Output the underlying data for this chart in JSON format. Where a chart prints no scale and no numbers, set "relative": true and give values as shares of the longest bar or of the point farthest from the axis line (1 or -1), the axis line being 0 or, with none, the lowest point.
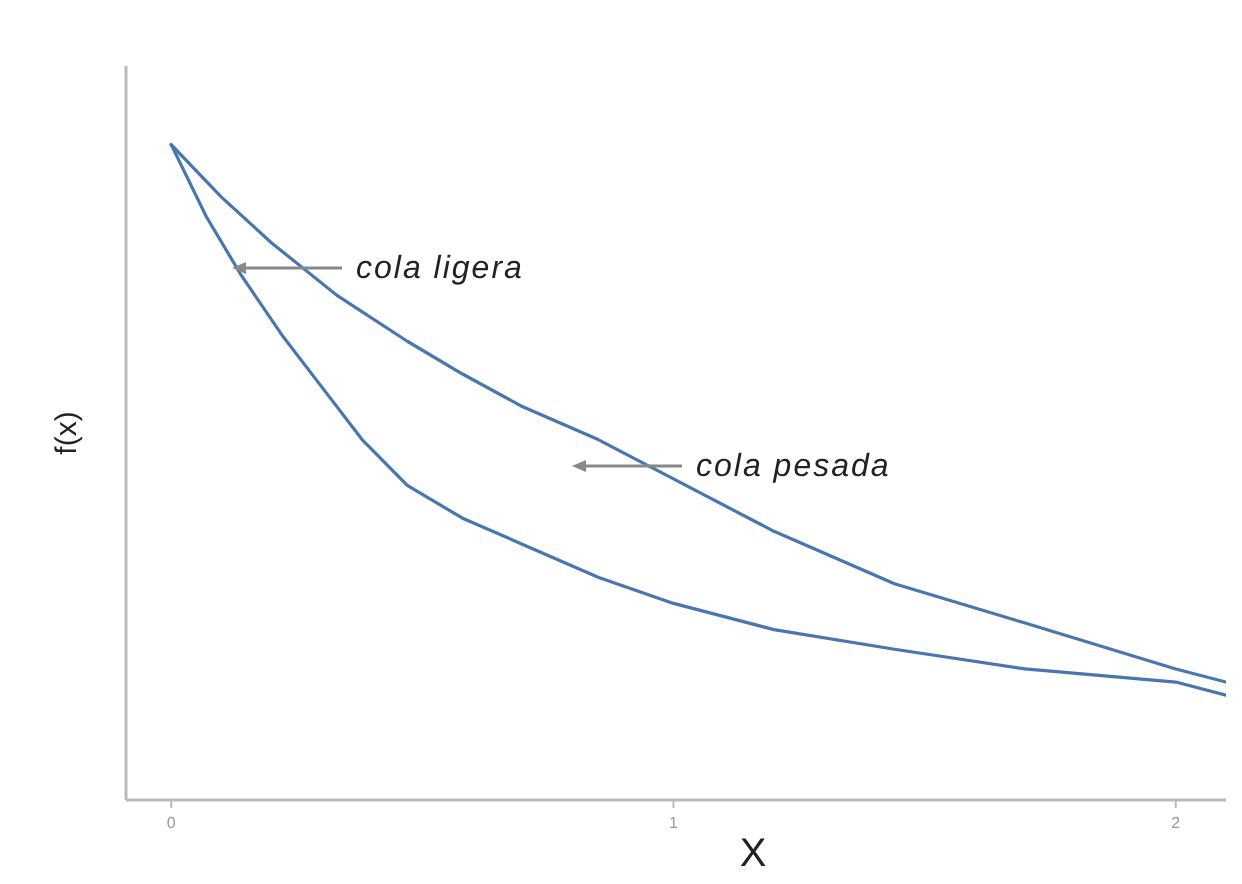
{
  "chart_data": {
    "type": "line",
    "relative": true,
    "xlabel": "X",
    "ylabel": "f(x)",
    "xlim": [
      -0.09,
      2.1
    ],
    "xticks": [
      0,
      1,
      2
    ],
    "grid": false,
    "marker": "none",
    "line_style": "solid",
    "series": [
      {
        "color": "#4a76b0",
        "x": [
          0,
          0.07,
          0.14,
          0.22,
          0.3,
          0.38,
          0.47,
          0.58,
          0.7,
          0.85,
          1,
          1.2,
          1.44,
          1.7,
          2,
          2.1
        ],
        "values": [
          1.0,
          0.89,
          0.8,
          0.71,
          0.63,
          0.55,
          0.48,
          0.43,
          0.39,
          0.34,
          0.3,
          0.26,
          0.23,
          0.2,
          0.18,
          0.16
        ]
      },
      {
        "color": "#4a76b0",
        "x": [
          0,
          0.1,
          0.2,
          0.33,
          0.47,
          0.58,
          0.7,
          0.85,
          1,
          1.2,
          1.44,
          1.7,
          2,
          2.1
        ],
        "values": [
          1.0,
          0.92,
          0.85,
          0.77,
          0.7,
          0.65,
          0.6,
          0.55,
          0.49,
          0.41,
          0.33,
          0.27,
          0.2,
          0.18
        ]
      }
    ],
    "annotations": [
      "cola ligera",
      "cola pesada"
    ]
  }
}
